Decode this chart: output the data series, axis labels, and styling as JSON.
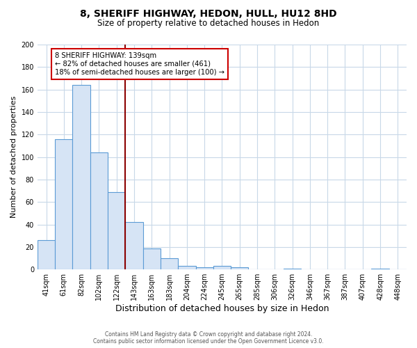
{
  "title": "8, SHERIFF HIGHWAY, HEDON, HULL, HU12 8HD",
  "subtitle": "Size of property relative to detached houses in Hedon",
  "xlabel": "Distribution of detached houses by size in Hedon",
  "ylabel": "Number of detached properties",
  "bar_labels": [
    "41sqm",
    "61sqm",
    "82sqm",
    "102sqm",
    "122sqm",
    "143sqm",
    "163sqm",
    "183sqm",
    "204sqm",
    "224sqm",
    "245sqm",
    "265sqm",
    "285sqm",
    "306sqm",
    "326sqm",
    "346sqm",
    "367sqm",
    "387sqm",
    "407sqm",
    "428sqm",
    "448sqm"
  ],
  "bar_values": [
    26,
    116,
    164,
    104,
    69,
    42,
    19,
    10,
    3,
    2,
    3,
    2,
    0,
    0,
    1,
    0,
    0,
    0,
    0,
    1,
    0
  ],
  "bar_color": "#d6e4f5",
  "bar_edge_color": "#5b9bd5",
  "marker_line_color": "#8b0000",
  "marker_idx": 5,
  "annotation_line1": "8 SHERIFF HIGHWAY: 139sqm",
  "annotation_line2": "← 82% of detached houses are smaller (461)",
  "annotation_line3": "18% of semi-detached houses are larger (100) →",
  "box_color": "#ffffff",
  "box_edge_color": "#cc0000",
  "ylim": [
    0,
    200
  ],
  "yticks": [
    0,
    20,
    40,
    60,
    80,
    100,
    120,
    140,
    160,
    180,
    200
  ],
  "footer_line1": "Contains HM Land Registry data © Crown copyright and database right 2024.",
  "footer_line2": "Contains public sector information licensed under the Open Government Licence v3.0.",
  "background_color": "#ffffff",
  "grid_color": "#c8d8e8"
}
